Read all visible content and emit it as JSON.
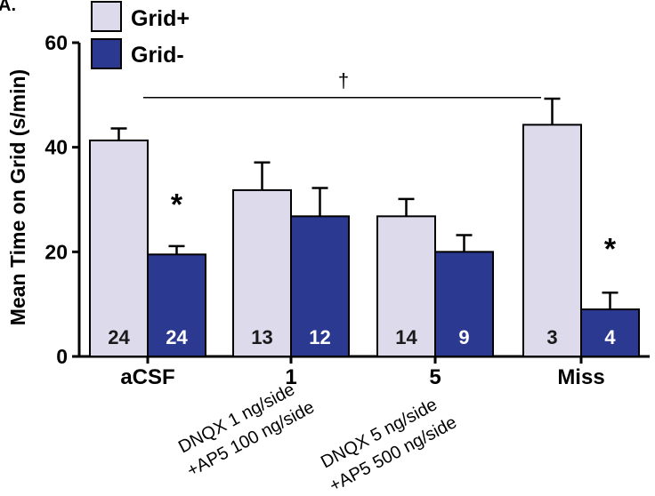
{
  "chart_data": {
    "type": "bar",
    "panel_label": "A.",
    "ylabel": "Mean Time on Grid (s/min)",
    "ylim": [
      0,
      60
    ],
    "yticks": [
      0,
      20,
      40,
      60
    ],
    "categories": [
      "aCSF",
      "1",
      "5",
      "Miss"
    ],
    "category_notes": [
      "",
      "DNQX 1 ng/side\n+AP5 100 ng/side",
      "DNQX 5 ng/side\n+AP5 500 ng/side",
      ""
    ],
    "series": [
      {
        "name": "Grid+",
        "color": "#dcdaeb",
        "values": [
          41.3,
          31.8,
          26.8,
          44.3
        ],
        "errors": [
          2.3,
          5.3,
          3.3,
          5.0
        ],
        "n": [
          "24",
          "13",
          "14",
          "3"
        ]
      },
      {
        "name": "Grid-",
        "color": "#2b3990",
        "values": [
          19.5,
          26.8,
          20.0,
          9.0
        ],
        "errors": [
          1.6,
          5.4,
          3.2,
          3.2
        ],
        "n": [
          "24",
          "12",
          "9",
          "4"
        ]
      }
    ],
    "annotations": [
      {
        "text": "*",
        "category_index": 0,
        "series_index": 1,
        "value": 29.5
      },
      {
        "text": "*",
        "category_index": 3,
        "series_index": 1,
        "value": 21
      },
      {
        "text": "†",
        "category_index": null,
        "series_index": null,
        "value": 53.5,
        "type": "bracket",
        "from_category": 0,
        "to_category": 3
      }
    ],
    "legend": "top-left",
    "grid": false
  }
}
